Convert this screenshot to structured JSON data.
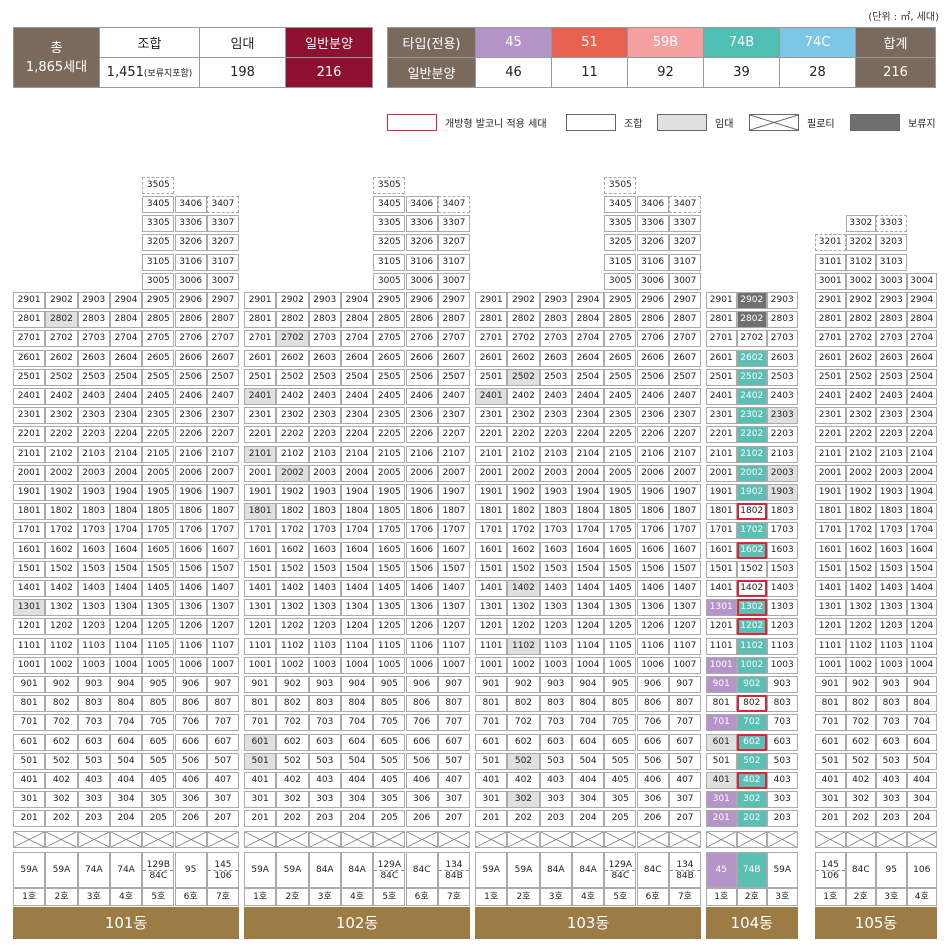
{
  "unit_note": "(단위 : ㎡, 세대)",
  "summary": {
    "total_label": "총",
    "total_value": "1,865세대",
    "cols": [
      "조합",
      "임대",
      "일반분양"
    ],
    "values": [
      "1,451",
      "198",
      "216"
    ],
    "union_note": "(보류지포함)"
  },
  "types": {
    "header": "타입(전용)",
    "row_label": "일반분양",
    "total_header": "합계",
    "items": [
      {
        "name": "45",
        "count": "46",
        "color": "#b595c9"
      },
      {
        "name": "51",
        "count": "11",
        "color": "#e8624f"
      },
      {
        "name": "59B",
        "count": "92",
        "color": "#f5a0a0"
      },
      {
        "name": "74B",
        "count": "39",
        "color": "#4fbfb3"
      },
      {
        "name": "74C",
        "count": "28",
        "color": "#7cc6e8"
      }
    ],
    "total": "216"
  },
  "legend": [
    "개방형 발코니 적용 세대",
    "조합",
    "임대",
    "필로티",
    "보류지"
  ],
  "colors": {
    "dark_brown": "#7a6a5e",
    "maroon": "#8d1030",
    "gold": "#9c7b45",
    "purple": "#b595c9",
    "teal": "#5bbfb3",
    "red_border": "#d7263d",
    "gray": "#e0e0e0",
    "dark_gray": "#707070"
  },
  "buildings": [
    {
      "name": "101동",
      "cols": 7,
      "hos": [
        "1호",
        "2호",
        "3호",
        "4호",
        "5호",
        "6호",
        "7호"
      ],
      "types": [
        [
          "59A"
        ],
        [
          "59A"
        ],
        [
          "74A"
        ],
        [
          "74A"
        ],
        [
          "129B",
          "84C"
        ],
        [
          "95"
        ],
        [
          "145",
          "106"
        ]
      ],
      "top": {
        "35": [
          5
        ],
        "34": [
          5,
          6,
          7
        ],
        "33": [
          5,
          6,
          7
        ],
        "32": [
          5,
          6,
          7
        ],
        "31": [
          5,
          6,
          7
        ],
        "30": [
          5,
          6,
          7
        ]
      },
      "gray": [
        "2802",
        "1301"
      ],
      "dark": [],
      "purple": [],
      "teal": [],
      "red": []
    },
    {
      "name": "102동",
      "cols": 7,
      "hos": [
        "1호",
        "2호",
        "3호",
        "4호",
        "5호",
        "6호",
        "7호"
      ],
      "types": [
        [
          "59A"
        ],
        [
          "59A"
        ],
        [
          "84A"
        ],
        [
          "84A"
        ],
        [
          "129A",
          "84C"
        ],
        [
          "84C"
        ],
        [
          "134",
          "84B"
        ]
      ],
      "top": {
        "35": [
          5
        ],
        "34": [
          5,
          6,
          7
        ],
        "33": [
          5,
          6,
          7
        ],
        "32": [
          5,
          6,
          7
        ],
        "31": [
          5,
          6,
          7
        ],
        "30": [
          5,
          6,
          7
        ]
      },
      "gray": [
        "2702",
        "2401",
        "2101",
        "2002",
        "1801",
        "601",
        "501"
      ],
      "dark": [],
      "purple": [],
      "teal": [],
      "red": []
    },
    {
      "name": "103동",
      "cols": 7,
      "hos": [
        "1호",
        "2호",
        "3호",
        "4호",
        "5호",
        "6호",
        "7호"
      ],
      "types": [
        [
          "59A"
        ],
        [
          "59A"
        ],
        [
          "84A"
        ],
        [
          "84A"
        ],
        [
          "129A",
          "84C"
        ],
        [
          "84C"
        ],
        [
          "134",
          "84B"
        ]
      ],
      "top": {
        "35": [
          5
        ],
        "34": [
          5,
          6,
          7
        ],
        "33": [
          5,
          6,
          7
        ],
        "32": [
          5,
          6,
          7
        ],
        "31": [
          5,
          6,
          7
        ],
        "30": [
          5,
          6,
          7
        ]
      },
      "gray": [
        "2502",
        "2401",
        "1402",
        "1102",
        "502",
        "302"
      ],
      "dark": [],
      "purple": [],
      "teal": [],
      "red": []
    },
    {
      "name": "104동",
      "cols": 3,
      "hos": [
        "1호",
        "2호",
        "3호"
      ],
      "types": [
        [
          "45"
        ],
        [
          "74B"
        ],
        [
          "59A"
        ]
      ],
      "top": {},
      "gray": [
        "2303",
        "2003",
        "1903",
        "601",
        "401"
      ],
      "dark": [
        "2902",
        "2802"
      ],
      "purple": [
        "1301",
        "1001",
        "901",
        "701",
        "301",
        "201"
      ],
      "teal": [
        "2602",
        "2502",
        "2402",
        "2302",
        "2202",
        "2102",
        "2002",
        "1902",
        "1702",
        "1602",
        "1302",
        "1202",
        "1102",
        "1002",
        "902",
        "702",
        "602",
        "502",
        "402",
        "302",
        "202"
      ],
      "red": [
        "1802",
        "1602",
        "1402",
        "1302",
        "1202",
        "802",
        "602",
        "402"
      ]
    },
    {
      "name": "105동",
      "cols": 4,
      "hos": [
        "1호",
        "2호",
        "3호",
        "4호"
      ],
      "types": [
        [
          "145",
          "106"
        ],
        [
          "84C"
        ],
        [
          "95"
        ],
        [
          "106"
        ]
      ],
      "top": {
        "33": [
          2,
          3
        ],
        "32": [
          1,
          2,
          3
        ],
        "31": [
          1,
          2,
          3
        ],
        "30": [
          1,
          2,
          3,
          4
        ]
      },
      "gray": [],
      "dark": [],
      "purple": [],
      "teal": [],
      "red": []
    }
  ]
}
